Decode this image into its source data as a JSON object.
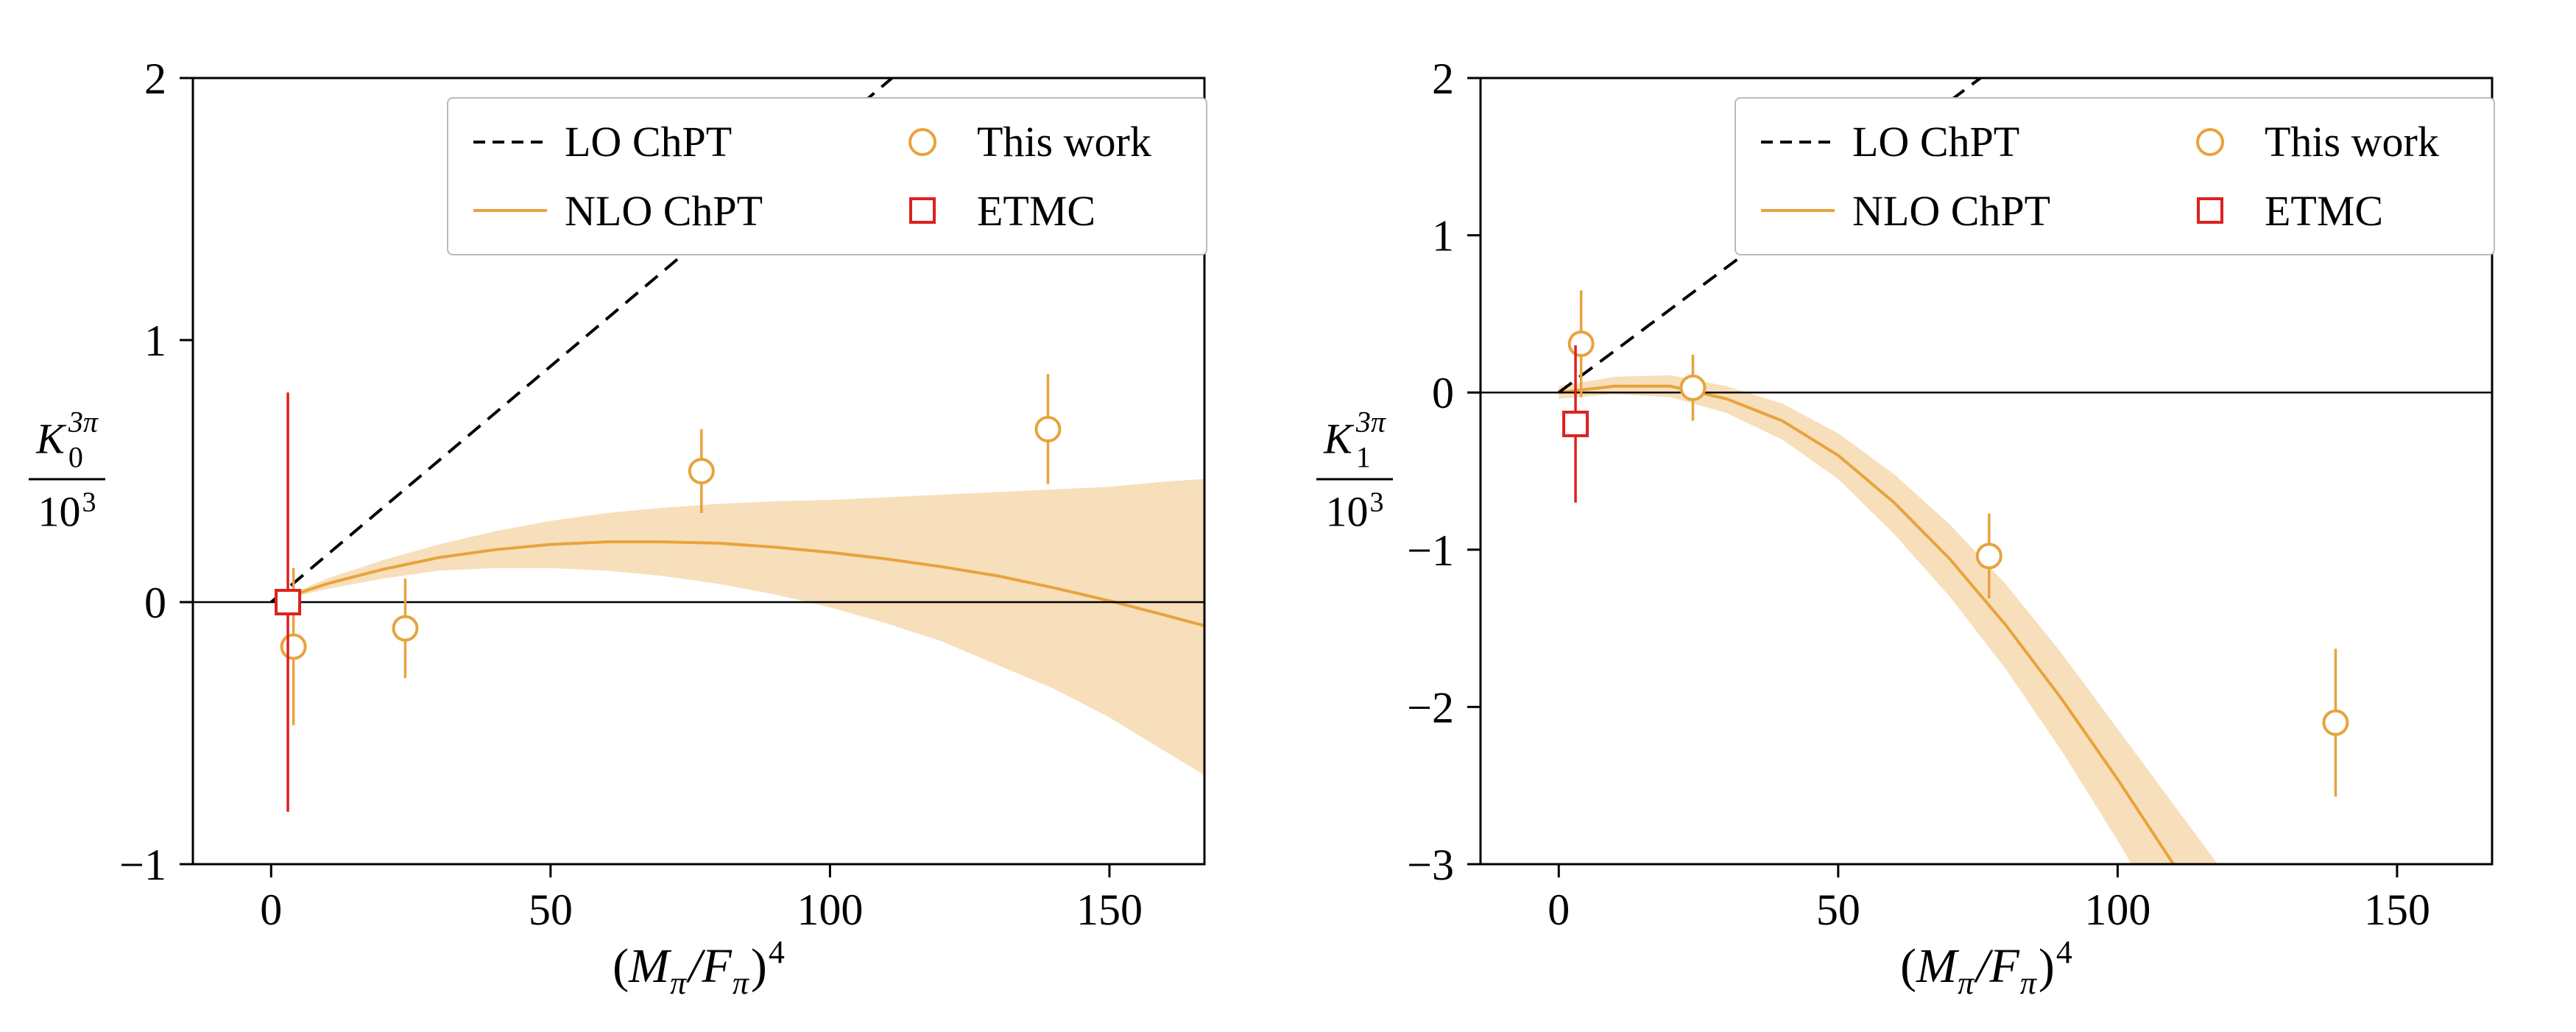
{
  "colors": {
    "background": "#ffffff",
    "axis": "#000000",
    "zero_line": "#000000",
    "lo_chpt": "#000000",
    "nlo_chpt": "#e8a33d",
    "this_work": "#e8a33d",
    "etmc": "#dd2020",
    "legend_border": "#bbbbbb",
    "nlo_band_opacity": 0.35
  },
  "legend": {
    "location": "upper right",
    "columns": 2,
    "items": [
      {
        "label": "LO ChPT",
        "marker": "dashed-line",
        "color_key": "lo_chpt"
      },
      {
        "label": "NLO ChPT",
        "marker": "solid-line",
        "color_key": "nlo_chpt"
      },
      {
        "label": "This work",
        "marker": "open-circle",
        "color_key": "this_work"
      },
      {
        "label": "ETMC",
        "marker": "open-square",
        "color_key": "etmc"
      }
    ]
  },
  "chart_data": [
    {
      "id": "k0",
      "type": "scatter",
      "title": "",
      "xlabel": "(M_pi/F_pi)^4",
      "ylabel": "K_0^{3pi} / 10^3",
      "xlabel_parts": {
        "p0": "(",
        "p1": "M",
        "p2": "π",
        "p3": "/",
        "p4": "F",
        "p5": "π",
        "p6": ")",
        "p7": "4"
      },
      "ylabel_parts": {
        "sym": "K",
        "sup": "3π",
        "sub": "0",
        "den": "10",
        "den_sup": "3"
      },
      "xlim": [
        -14,
        167
      ],
      "ylim": [
        -1,
        2
      ],
      "xticks": [
        0,
        50,
        100,
        150
      ],
      "yticks": [
        -1,
        0,
        1,
        2
      ],
      "grid": false,
      "zero_line": true,
      "lo_chpt_line": {
        "x0": 0,
        "y0": 0,
        "slope": 0.018
      },
      "nlo_chpt": {
        "x": [
          0,
          10,
          20,
          30,
          40,
          50,
          60,
          70,
          80,
          90,
          100,
          110,
          120,
          130,
          140,
          150,
          160,
          167
        ],
        "y": [
          0,
          0.07,
          0.125,
          0.17,
          0.2,
          0.22,
          0.23,
          0.23,
          0.225,
          0.21,
          0.19,
          0.165,
          0.135,
          0.1,
          0.055,
          0.005,
          -0.05,
          -0.09
        ],
        "band_hi": [
          0,
          0.09,
          0.16,
          0.22,
          0.27,
          0.31,
          0.34,
          0.36,
          0.375,
          0.385,
          0.39,
          0.4,
          0.41,
          0.42,
          0.43,
          0.44,
          0.46,
          0.47
        ],
        "band_lo": [
          0,
          0.05,
          0.09,
          0.12,
          0.13,
          0.13,
          0.12,
          0.1,
          0.07,
          0.03,
          -0.02,
          -0.08,
          -0.15,
          -0.24,
          -0.33,
          -0.44,
          -0.57,
          -0.66
        ]
      },
      "series": [
        {
          "name": "This work",
          "marker": "circle",
          "color_key": "this_work",
          "points": [
            {
              "x": 4,
              "y": -0.17,
              "err": 0.3
            },
            {
              "x": 24,
              "y": -0.1,
              "err": 0.19
            },
            {
              "x": 77,
              "y": 0.5,
              "err": 0.16
            },
            {
              "x": 139,
              "y": 0.66,
              "err": 0.21
            }
          ]
        },
        {
          "name": "ETMC",
          "marker": "square",
          "color_key": "etmc",
          "points": [
            {
              "x": 3,
              "y": 0.0,
              "err": 0.8
            }
          ]
        }
      ]
    },
    {
      "id": "k1",
      "type": "scatter",
      "title": "",
      "xlabel": "(M_pi/F_pi)^4",
      "ylabel": "K_1^{3pi} / 10^3",
      "xlabel_parts": {
        "p0": "(",
        "p1": "M",
        "p2": "π",
        "p3": "/",
        "p4": "F",
        "p5": "π",
        "p6": ")",
        "p7": "4"
      },
      "ylabel_parts": {
        "sym": "K",
        "sup": "3π",
        "sub": "1",
        "den": "10",
        "den_sup": "3"
      },
      "xlim": [
        -14,
        167
      ],
      "ylim": [
        -3,
        2
      ],
      "xticks": [
        0,
        50,
        100,
        150
      ],
      "yticks": [
        -3,
        -2,
        -1,
        0,
        1,
        2
      ],
      "grid": false,
      "zero_line": true,
      "lo_chpt_line": {
        "x0": 0,
        "y0": 0,
        "slope": 0.0265
      },
      "nlo_chpt": {
        "x": [
          0,
          10,
          20,
          30,
          40,
          50,
          60,
          70,
          80,
          90,
          100,
          110,
          120
        ],
        "y": [
          0,
          0.04,
          0.04,
          -0.04,
          -0.18,
          -0.4,
          -0.7,
          -1.06,
          -1.48,
          -1.95,
          -2.46,
          -3.0,
          -3.6
        ],
        "band_hi": [
          0.04,
          0.1,
          0.11,
          0.04,
          -0.07,
          -0.26,
          -0.52,
          -0.84,
          -1.22,
          -1.66,
          -2.14,
          -2.62,
          -3.1
        ],
        "band_lo": [
          -0.04,
          -0.01,
          -0.03,
          -0.13,
          -0.3,
          -0.55,
          -0.9,
          -1.3,
          -1.76,
          -2.28,
          -2.85,
          -3.45,
          -4.1
        ]
      },
      "series": [
        {
          "name": "This work",
          "marker": "circle",
          "color_key": "this_work",
          "points": [
            {
              "x": 4,
              "y": 0.31,
              "err": 0.34
            },
            {
              "x": 24,
              "y": 0.03,
              "err": 0.21
            },
            {
              "x": 77,
              "y": -1.04,
              "err": 0.27
            },
            {
              "x": 139,
              "y": -2.1,
              "err": 0.47
            }
          ]
        },
        {
          "name": "ETMC",
          "marker": "square",
          "color_key": "etmc",
          "points": [
            {
              "x": 3,
              "y": -0.2,
              "err": 0.5
            }
          ]
        }
      ]
    }
  ]
}
